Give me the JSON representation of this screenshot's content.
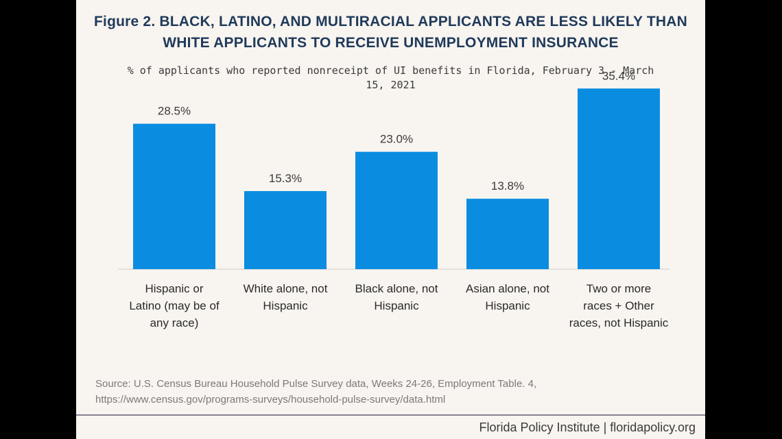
{
  "chart_data": {
    "type": "bar",
    "title": "Figure 2. BLACK, LATINO, AND MULTIRACIAL APPLICANTS ARE LESS LIKELY THAN WHITE APPLICANTS TO RECEIVE UNEMPLOYMENT INSURANCE",
    "subtitle": "% of applicants who reported nonreceipt of UI benefits in Florida, February 3 - March 15, 2021",
    "categories": [
      [
        "Hispanic or",
        "Latino (may be of",
        "any race)"
      ],
      [
        "White alone, not",
        "Hispanic"
      ],
      [
        "Black alone, not",
        "Hispanic"
      ],
      [
        "Asian alone, not",
        "Hispanic"
      ],
      [
        "Two or more",
        "races + Other",
        "races, not Hispanic"
      ]
    ],
    "values": [
      28.5,
      15.3,
      23.0,
      13.8,
      35.4
    ],
    "value_labels": [
      "28.5%",
      "15.3%",
      "23.0%",
      "13.8%",
      "35.4%"
    ],
    "ylim": [
      0,
      40
    ],
    "grid": false,
    "bar_color": "#0a8de0"
  },
  "source": {
    "line1": "Source: U.S. Census Bureau Household Pulse Survey data, Weeks 24-26, Employment Table. 4,",
    "line2": "https://www.census.gov/programs-surveys/household-pulse-survey/data.html"
  },
  "footer": "Florida Policy Institute | floridapolicy.org"
}
